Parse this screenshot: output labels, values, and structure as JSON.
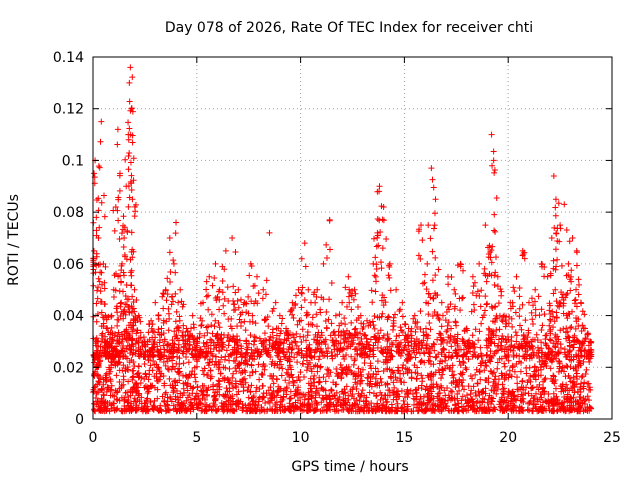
{
  "chart_data": {
    "type": "scatter",
    "title": "Day 078 of 2026, Rate Of TEC Index for receiver chti",
    "xlabel": "GPS time / hours",
    "ylabel": "ROTI / TECUs",
    "xlim": [
      0,
      25
    ],
    "ylim": [
      0,
      0.14
    ],
    "xticks": [
      0,
      5,
      10,
      15,
      20,
      25
    ],
    "xtick_labels": [
      "0",
      "5",
      "10",
      "15",
      "20",
      "25"
    ],
    "yticks": [
      0,
      0.02,
      0.04,
      0.06,
      0.08,
      0.1,
      0.12,
      0.14
    ],
    "ytick_labels": [
      "0",
      "0.02",
      "0.04",
      "0.06",
      "0.08",
      "0.1",
      "0.12",
      "0.14"
    ],
    "grid": true,
    "marker": "plus",
    "series": [
      {
        "name": "ROTI",
        "color": "#ff0000",
        "x": [
          0.05,
          0.1,
          0.15,
          0.2,
          0.3,
          0.4,
          0.5,
          0.6,
          0.7,
          0.8,
          0.9,
          1.0,
          1.1,
          1.2,
          1.3,
          1.4,
          1.5,
          1.6,
          1.7,
          1.75,
          1.8,
          1.85,
          1.9,
          2.0,
          2.2,
          2.5,
          2.8,
          3.0,
          3.3,
          3.5,
          3.7,
          3.9,
          4.0,
          4.2,
          4.5,
          4.8,
          5.0,
          5.3,
          5.6,
          5.9,
          6.1,
          6.4,
          6.7,
          7.0,
          7.3,
          7.6,
          7.9,
          8.2,
          8.5,
          8.8,
          9.0,
          9.3,
          9.6,
          9.9,
          10.2,
          10.5,
          10.8,
          11.1,
          11.4,
          11.7,
          12.0,
          12.3,
          12.6,
          12.9,
          13.2,
          13.5,
          13.7,
          13.8,
          14.0,
          14.3,
          14.6,
          14.9,
          15.2,
          15.5,
          15.8,
          16.1,
          16.3,
          16.5,
          16.8,
          17.1,
          17.4,
          17.7,
          18.0,
          18.3,
          18.6,
          18.9,
          19.1,
          19.2,
          19.3,
          19.5,
          19.8,
          20.1,
          20.4,
          20.7,
          21.0,
          21.3,
          21.6,
          21.9,
          22.1,
          22.2,
          22.3,
          22.5,
          22.7,
          22.9,
          23.1,
          23.3,
          23.5,
          23.7,
          23.9
        ],
        "y": [
          0.095,
          0.1,
          0.02,
          0.03,
          0.074,
          0.115,
          0.06,
          0.04,
          0.03,
          0.025,
          0.04,
          0.05,
          0.082,
          0.112,
          0.095,
          0.06,
          0.07,
          0.09,
          0.11,
          0.13,
          0.136,
          0.12,
          0.085,
          0.05,
          0.04,
          0.03,
          0.038,
          0.045,
          0.035,
          0.05,
          0.07,
          0.06,
          0.076,
          0.05,
          0.035,
          0.04,
          0.03,
          0.045,
          0.055,
          0.06,
          0.05,
          0.065,
          0.07,
          0.05,
          0.045,
          0.06,
          0.055,
          0.05,
          0.072,
          0.045,
          0.04,
          0.035,
          0.045,
          0.05,
          0.068,
          0.045,
          0.05,
          0.06,
          0.077,
          0.04,
          0.045,
          0.055,
          0.05,
          0.04,
          0.038,
          0.06,
          0.072,
          0.09,
          0.082,
          0.06,
          0.05,
          0.045,
          0.035,
          0.04,
          0.075,
          0.06,
          0.097,
          0.085,
          0.045,
          0.055,
          0.05,
          0.06,
          0.035,
          0.055,
          0.06,
          0.075,
          0.067,
          0.11,
          0.1,
          0.055,
          0.04,
          0.045,
          0.055,
          0.065,
          0.045,
          0.05,
          0.06,
          0.055,
          0.07,
          0.094,
          0.085,
          0.075,
          0.083,
          0.06,
          0.07,
          0.065,
          0.045,
          0.035,
          0.03
        ]
      }
    ],
    "baseline_band": {
      "description": "dense continuous cluster of points across the full time range",
      "y_range": [
        0.003,
        0.03
      ]
    }
  }
}
